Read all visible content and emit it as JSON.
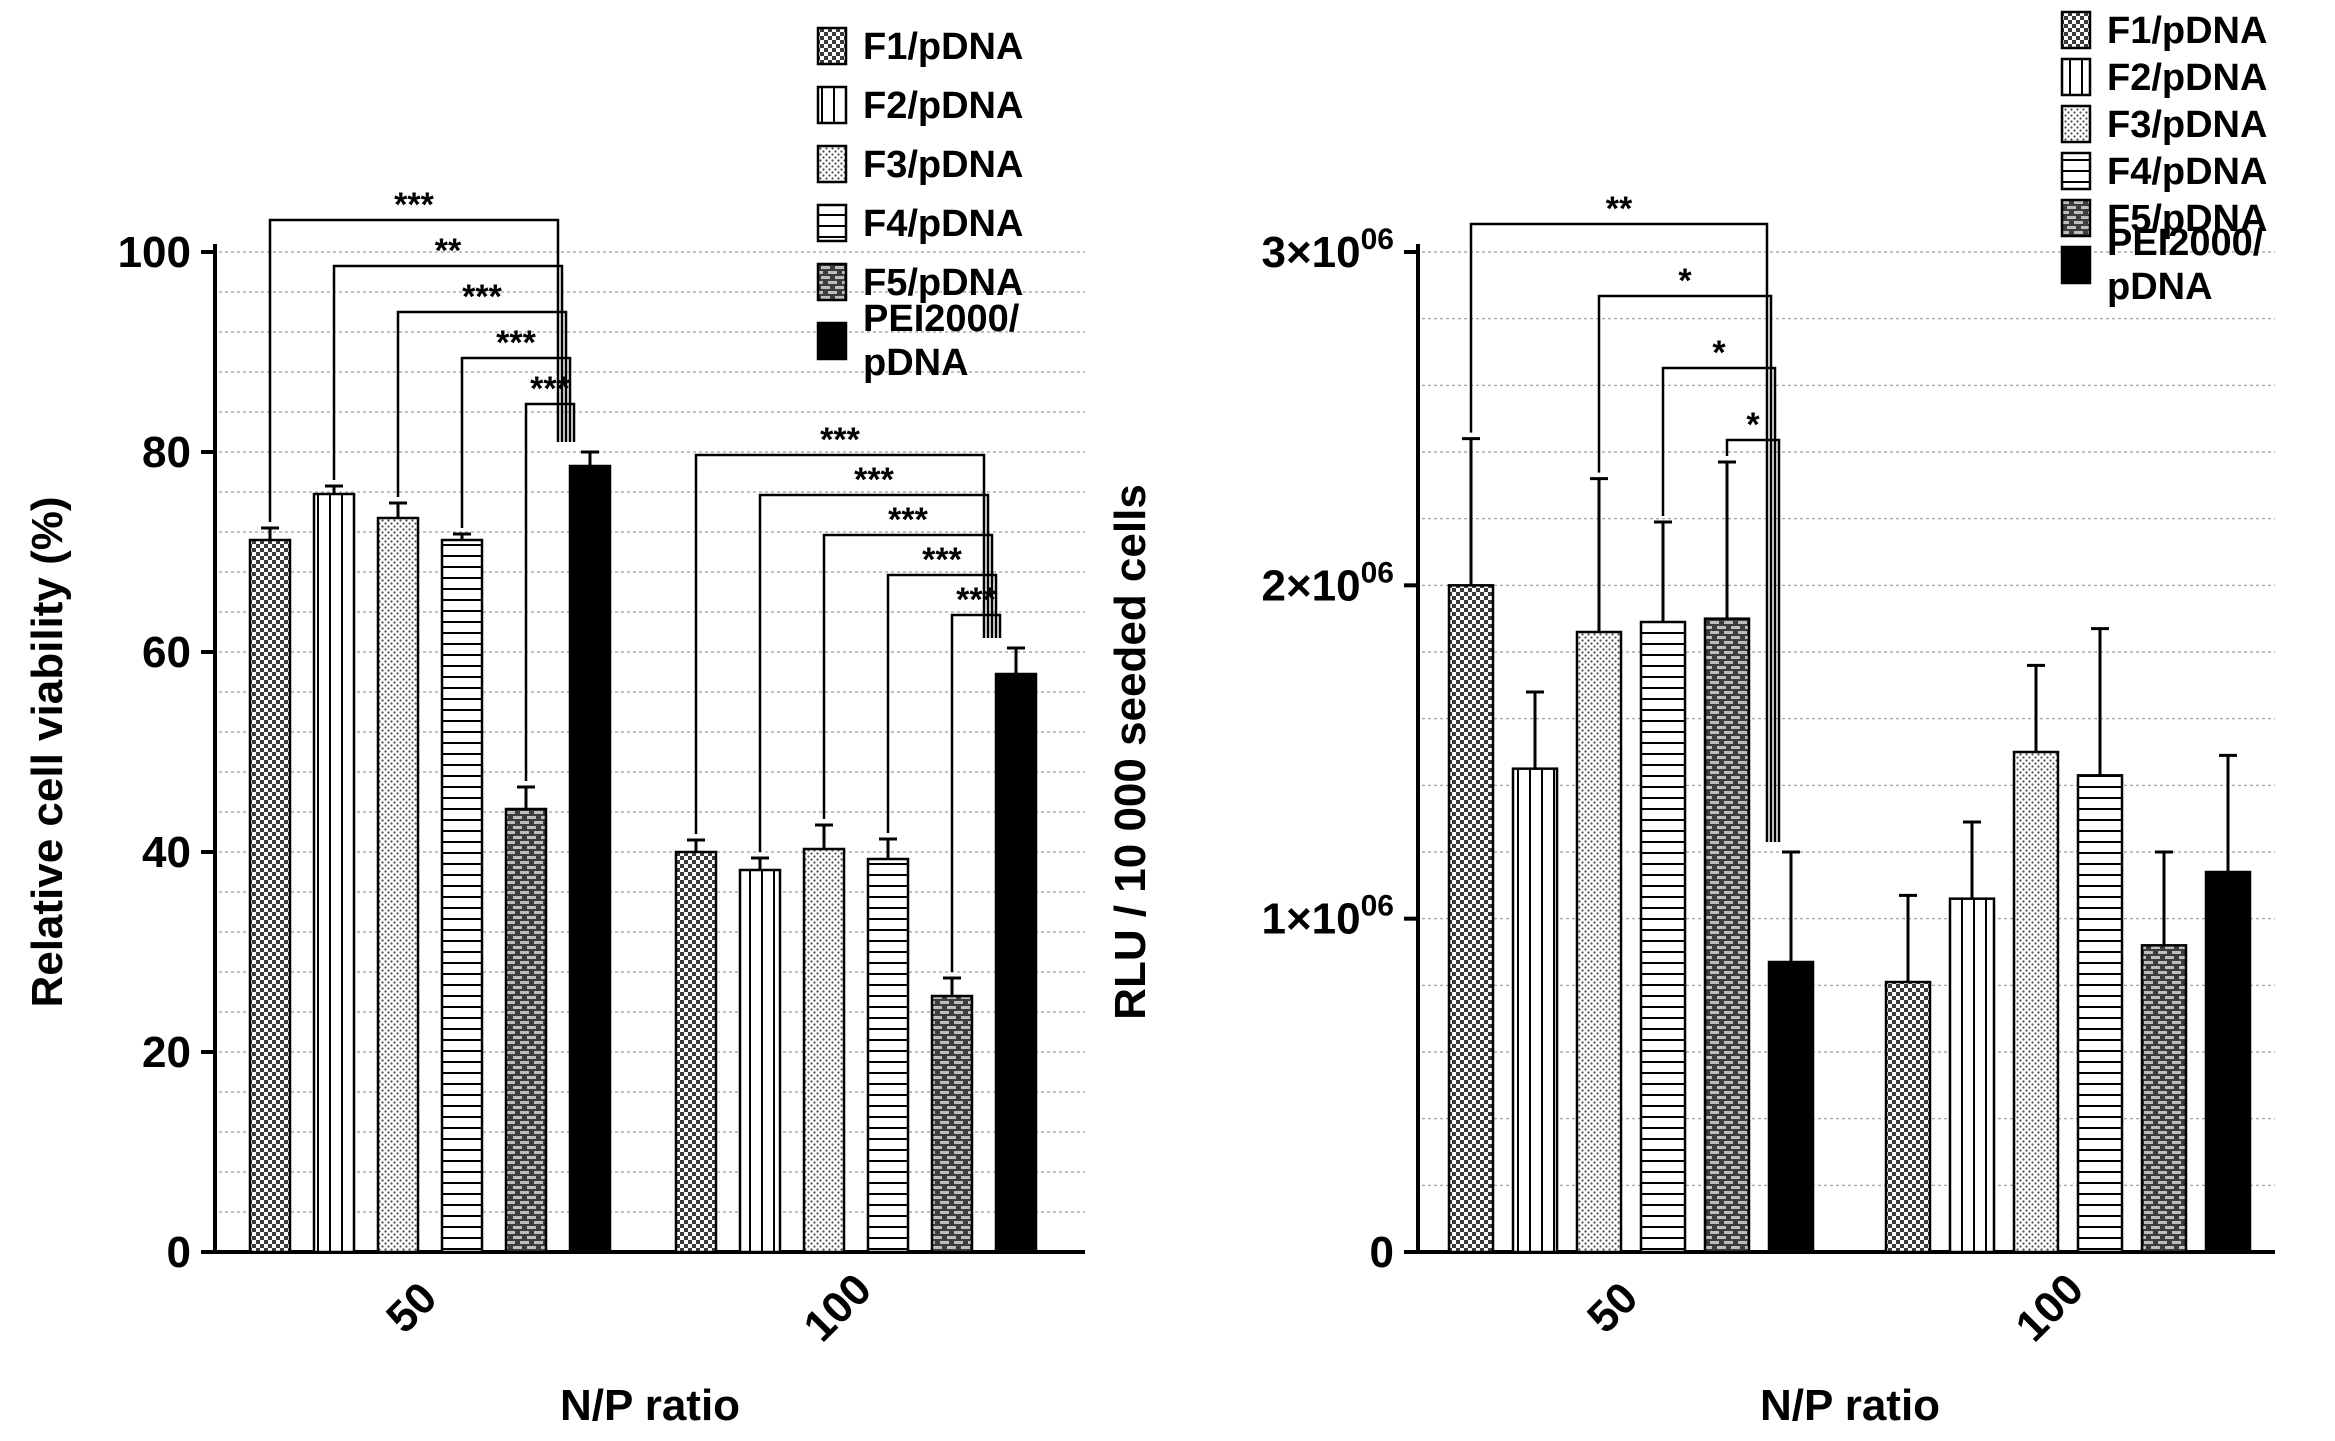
{
  "chart_data": [
    {
      "type": "bar",
      "title": "",
      "xlabel": "N/P ratio",
      "ylabel": "Relative cell viability (%)",
      "categories": [
        "50",
        "100"
      ],
      "ylim": [
        0,
        100
      ],
      "yticks": [
        0,
        20,
        40,
        60,
        80,
        100
      ],
      "ytick_labels": [
        "0",
        "20",
        "40",
        "60",
        "80",
        "100"
      ],
      "minor_grid_step": 4,
      "series": [
        {
          "name": "F1/pDNA",
          "pattern": "checker",
          "values": [
            71.2,
            40.0
          ],
          "errors": [
            1.2,
            1.2
          ]
        },
        {
          "name": "F2/pDNA",
          "pattern": "vlines",
          "values": [
            75.8,
            38.2
          ],
          "errors": [
            0.8,
            1.2
          ]
        },
        {
          "name": "F3/pDNA",
          "pattern": "dots",
          "values": [
            73.4,
            40.3
          ],
          "errors": [
            1.5,
            2.4
          ]
        },
        {
          "name": "F4/pDNA",
          "pattern": "hlines",
          "values": [
            71.2,
            39.3
          ],
          "errors": [
            0.6,
            2.0
          ]
        },
        {
          "name": "F5/pDNA",
          "pattern": "brick",
          "values": [
            44.3,
            25.6
          ],
          "errors": [
            2.2,
            1.8
          ]
        },
        {
          "name": "PEI2000/ pDNA",
          "pattern": "solid",
          "values": [
            78.6,
            57.8
          ],
          "errors": [
            1.4,
            2.6
          ]
        }
      ],
      "significance": [
        {
          "group": 0,
          "from": 0,
          "to": 5,
          "label": "***"
        },
        {
          "group": 0,
          "from": 1,
          "to": 5,
          "label": "**"
        },
        {
          "group": 0,
          "from": 2,
          "to": 5,
          "label": "***"
        },
        {
          "group": 0,
          "from": 3,
          "to": 5,
          "label": "***"
        },
        {
          "group": 0,
          "from": 4,
          "to": 5,
          "label": "***"
        },
        {
          "group": 1,
          "from": 0,
          "to": 5,
          "label": "***"
        },
        {
          "group": 1,
          "from": 1,
          "to": 5,
          "label": "***"
        },
        {
          "group": 1,
          "from": 2,
          "to": 5,
          "label": "***"
        },
        {
          "group": 1,
          "from": 3,
          "to": 5,
          "label": "***"
        },
        {
          "group": 1,
          "from": 4,
          "to": 5,
          "label": "***"
        }
      ],
      "legend": "top-right"
    },
    {
      "type": "bar",
      "title": "",
      "xlabel": "N/P ratio",
      "ylabel": "RLU / 10 000 seeded cells",
      "categories": [
        "50",
        "100"
      ],
      "ylim": [
        0,
        3000000
      ],
      "yticks": [
        0,
        1000000,
        2000000,
        3000000
      ],
      "ytick_labels": [
        {
          "base": "0",
          "exp": ""
        },
        {
          "base": "1×10",
          "exp": "06"
        },
        {
          "base": "2×10",
          "exp": "06"
        },
        {
          "base": "3×10",
          "exp": "06"
        }
      ],
      "minor_grid_step": 200000,
      "series": [
        {
          "name": "F1/pDNA",
          "pattern": "checker",
          "values": [
            2000000,
            810000
          ],
          "errors": [
            440000,
            260000
          ]
        },
        {
          "name": "F2/pDNA",
          "pattern": "vlines",
          "values": [
            1450000,
            1060000
          ],
          "errors": [
            230000,
            230000
          ]
        },
        {
          "name": "F3/pDNA",
          "pattern": "dots",
          "values": [
            1860000,
            1500000
          ],
          "errors": [
            460000,
            260000
          ]
        },
        {
          "name": "F4/pDNA",
          "pattern": "hlines",
          "values": [
            1890000,
            1430000
          ],
          "errors": [
            300000,
            440000
          ]
        },
        {
          "name": "F5/pDNA",
          "pattern": "brick",
          "values": [
            1900000,
            920000
          ],
          "errors": [
            470000,
            280000
          ]
        },
        {
          "name": "PEI2000/ pDNA",
          "pattern": "solid",
          "values": [
            870000,
            1140000
          ],
          "errors": [
            330000,
            350000
          ]
        }
      ],
      "significance": [
        {
          "group": 0,
          "from": 0,
          "to": 5,
          "label": "**"
        },
        {
          "group": 0,
          "from": 2,
          "to": 5,
          "label": "*"
        },
        {
          "group": 0,
          "from": 3,
          "to": 5,
          "label": "*"
        },
        {
          "group": 0,
          "from": 4,
          "to": 5,
          "label": "*"
        }
      ],
      "legend": "top-right"
    }
  ]
}
